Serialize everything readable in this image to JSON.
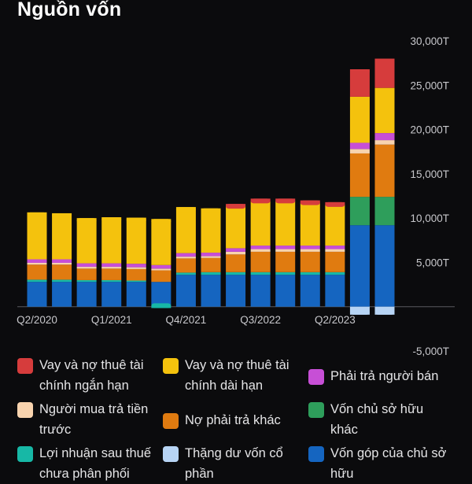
{
  "title": "Nguồn vốn",
  "colors": {
    "background": "#0b0b0d",
    "axis_text": "#c8c8cc",
    "zero_line": "#5a5a60"
  },
  "chart_data": {
    "type": "bar",
    "stacked": true,
    "unit": "T",
    "ylim": [
      -5000,
      30000
    ],
    "yticks": [
      "30,000T",
      "25,000T",
      "20,000T",
      "15,000T",
      "10,000T",
      "5,000T",
      "-5,000T"
    ],
    "ytick_values": [
      30000,
      25000,
      20000,
      15000,
      10000,
      5000,
      -5000
    ],
    "x_tick_labels": [
      "Q2/2020",
      "Q1/2021",
      "Q4/2021",
      "Q3/2022",
      "Q2/2023"
    ],
    "categories": [
      "Q2/2020",
      "Q3/2020",
      "Q4/2020",
      "Q1/2021",
      "Q2/2021",
      "Q3/2021",
      "Q4/2021",
      "Q1/2022",
      "Q2/2022",
      "Q3/2022",
      "Q4/2022",
      "Q1/2023",
      "Q2/2023",
      "Q3/2023",
      "Q4/2023"
    ],
    "grid": false,
    "legend_position": "bottom",
    "series": [
      {
        "name": "Vốn góp của chủ sở hữu",
        "color": "#1565c0",
        "values": [
          2800,
          2800,
          2800,
          2800,
          2800,
          2800,
          3600,
          3600,
          3600,
          3600,
          3600,
          3600,
          3600,
          9200,
          9200
        ]
      },
      {
        "name": "Thặng dư vốn cổ phần",
        "color": "#b7d4f4",
        "values": [
          0,
          0,
          0,
          0,
          0,
          0,
          0,
          0,
          0,
          0,
          0,
          0,
          0,
          -900,
          -900
        ]
      },
      {
        "name": "Lợi nhuận sau thuế chưa phân phối",
        "color": "#17b8a6",
        "values": [
          250,
          250,
          200,
          200,
          150,
          -150,
          250,
          300,
          300,
          300,
          300,
          300,
          300,
          0,
          0
        ]
      },
      {
        "name": "Vốn chủ sở hữu khác",
        "color": "#2e9e5b",
        "values": [
          0,
          0,
          0,
          0,
          0,
          0,
          0,
          0,
          0,
          0,
          0,
          0,
          0,
          3200,
          3200
        ]
      },
      {
        "name": "Nợ phải trả khác",
        "color": "#e07b10",
        "values": [
          1700,
          1700,
          1300,
          1300,
          1300,
          1300,
          1600,
          1600,
          2000,
          2300,
          2300,
          2300,
          2300,
          4900,
          5900
        ]
      },
      {
        "name": "Người mua trả tiền trước",
        "color": "#f8d3ae",
        "values": [
          200,
          200,
          200,
          200,
          200,
          200,
          200,
          200,
          300,
          300,
          300,
          300,
          300,
          500,
          500
        ]
      },
      {
        "name": "Phải trả người bán",
        "color": "#c74fd6",
        "values": [
          400,
          400,
          400,
          400,
          400,
          400,
          400,
          400,
          400,
          400,
          400,
          400,
          400,
          700,
          800
        ]
      },
      {
        "name": "Vay và nợ thuê tài chính dài hạn",
        "color": "#f4c20d",
        "values": [
          5300,
          5200,
          5100,
          5200,
          5200,
          5200,
          5200,
          5000,
          4800,
          5000,
          5000,
          4800,
          4600,
          5200,
          5100
        ]
      },
      {
        "name": "Vay và nợ thuê tài chính ngắn hạn",
        "color": "#d63c3c",
        "values": [
          0,
          0,
          0,
          0,
          0,
          0,
          0,
          0,
          200,
          300,
          300,
          300,
          300,
          3100,
          3300
        ]
      }
    ]
  },
  "legend": [
    {
      "label": "Vay và nợ thuê tài chính ngắn hạn",
      "color": "#d63c3c"
    },
    {
      "label": "Vay và nợ thuê tài chính dài hạn",
      "color": "#f4c20d"
    },
    {
      "label": "Phải trả người bán",
      "color": "#c74fd6"
    },
    {
      "label": "Người mua trả tiền trước",
      "color": "#f8d3ae"
    },
    {
      "label": "Nợ phải trả khác",
      "color": "#e07b10"
    },
    {
      "label": "Vốn chủ sở hữu khác",
      "color": "#2e9e5b"
    },
    {
      "label": "Lợi nhuận sau thuế chưa phân phối",
      "color": "#17b8a6"
    },
    {
      "label": "Thặng dư vốn cổ phần",
      "color": "#b7d4f4"
    },
    {
      "label": "Vốn góp của chủ sở hữu",
      "color": "#1565c0"
    }
  ]
}
